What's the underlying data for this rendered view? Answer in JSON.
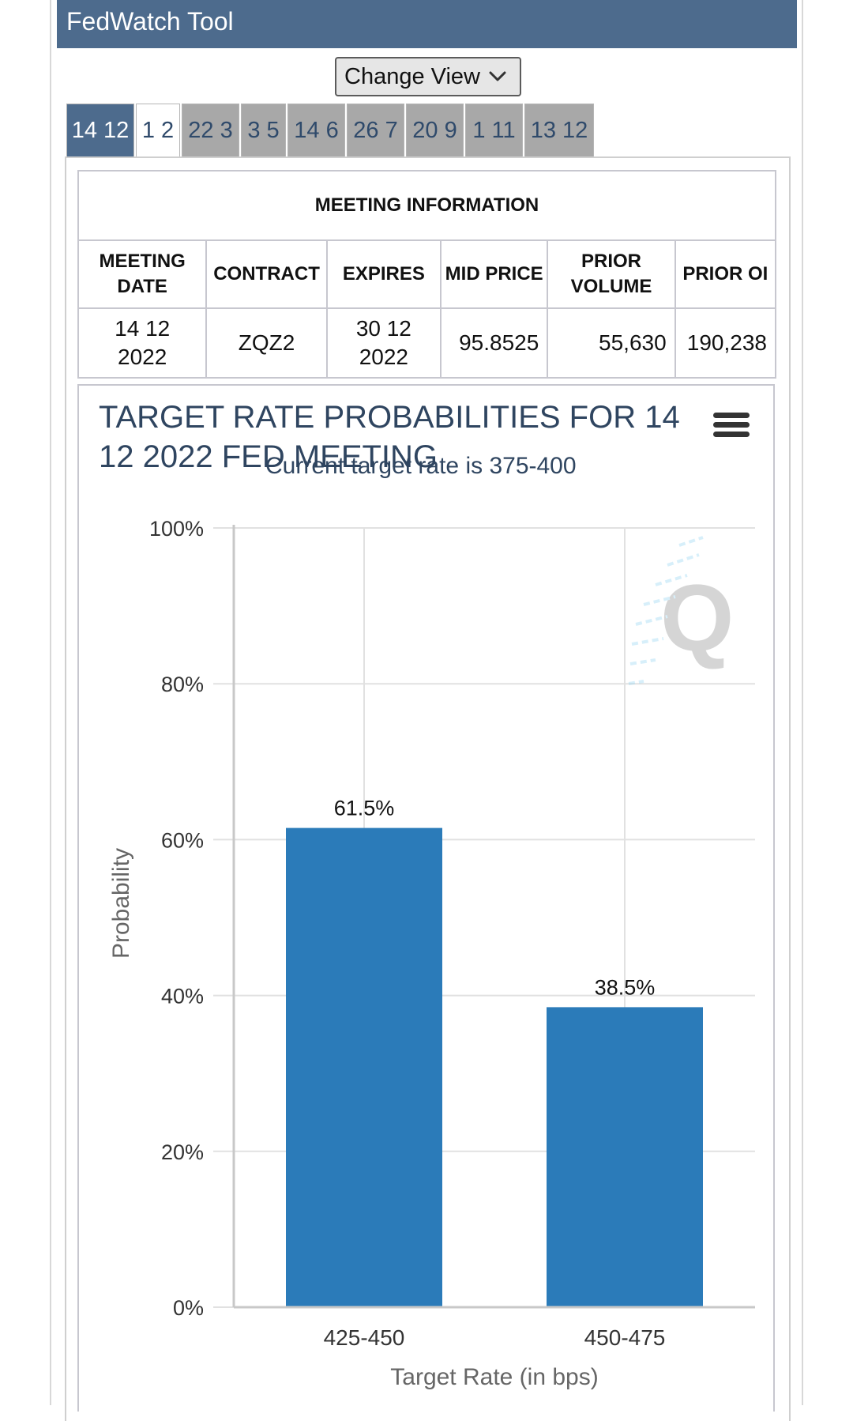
{
  "app": {
    "title": "FedWatch Tool"
  },
  "toolbar": {
    "change_view_label": "Change View"
  },
  "tabs": [
    {
      "label": "14 12",
      "state": "active"
    },
    {
      "label": "1 2",
      "state": "next"
    },
    {
      "label": "22 3",
      "state": "normal"
    },
    {
      "label": "3 5",
      "state": "normal"
    },
    {
      "label": "14 6",
      "state": "normal"
    },
    {
      "label": "26 7",
      "state": "normal"
    },
    {
      "label": "20 9",
      "state": "normal"
    },
    {
      "label": "1 11",
      "state": "normal"
    },
    {
      "label": "13 12",
      "state": "normal"
    }
  ],
  "meeting_info": {
    "heading": "MEETING INFORMATION",
    "columns": [
      "MEETING DATE",
      "CONTRACT",
      "EXPIRES",
      "MID PRICE",
      "PRIOR VOLUME",
      "PRIOR OI"
    ],
    "row": [
      "14 12 2022",
      "ZQZ2",
      "30 12 2022",
      "95.8525",
      "55,630",
      "190,238"
    ]
  },
  "chart_data": {
    "type": "bar",
    "title": "TARGET RATE PROBABILITIES FOR 14 12 2022 FED MEETING",
    "subtitle": "Current target rate is 375-400",
    "categories": [
      "425-450",
      "450-475"
    ],
    "values": [
      61.5,
      38.5
    ],
    "data_labels": [
      "61.5%",
      "38.5%"
    ],
    "xlabel": "Target Rate (in bps)",
    "ylabel": "Probability",
    "ylim": [
      0,
      100
    ],
    "yticks": [
      0,
      20,
      40,
      60,
      80,
      100
    ],
    "ytick_labels": [
      "0%",
      "20%",
      "40%",
      "60%",
      "80%",
      "100%"
    ],
    "bar_color": "#2b7bb9",
    "grid": true,
    "legend": "none"
  },
  "colors": {
    "header_bg": "#4d6b8d",
    "active_tab": "#4d6b8d",
    "inactive_tab": "#a8a8a8"
  },
  "icons": {
    "dropdown": "chevron-down-icon",
    "menu": "hamburger-menu-icon"
  }
}
